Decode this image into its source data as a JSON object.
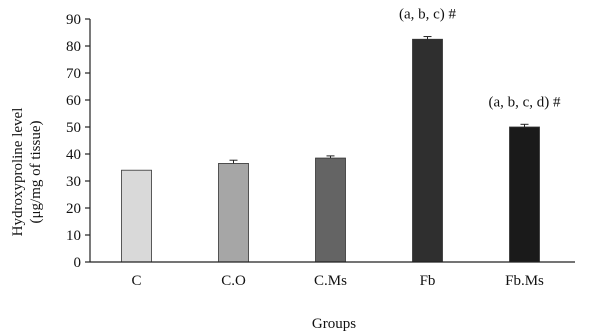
{
  "chart_data": {
    "type": "bar",
    "categories": [
      "C",
      "C.O",
      "C.Ms",
      "Fb",
      "Fb.Ms"
    ],
    "values": [
      34,
      36.5,
      38.5,
      82.5,
      50
    ],
    "errors": [
      0,
      1.2,
      0.8,
      1.0,
      1.0
    ],
    "bar_colors": [
      "#d9d9d9",
      "#a6a6a6",
      "#646464",
      "#2f2f2f",
      "#1a1a1a"
    ],
    "annotations": [
      "",
      "",
      "",
      "(a, b, c) #",
      "(a, b, c, d) #"
    ],
    "title": "",
    "xlabel": "Groups",
    "ylabel_line1": "Hydroxyproline level",
    "ylabel_line2": "(μg/mg of tissue)",
    "ylim": [
      0,
      90
    ],
    "yticks": [
      0,
      10,
      20,
      30,
      40,
      50,
      60,
      70,
      80,
      90
    ],
    "grid": false,
    "legend": "none"
  }
}
